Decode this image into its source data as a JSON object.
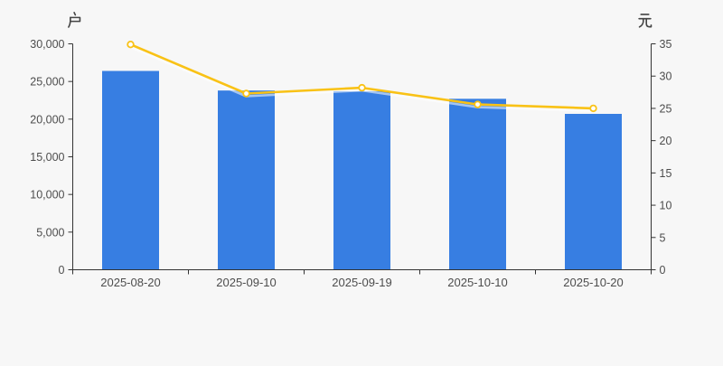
{
  "colors": {
    "background": "#f7f7f7",
    "bar": "#377ee2",
    "line": "#f9c216",
    "marker_fill": "#ffffff",
    "axis": "#333333",
    "tick_label": "#4d4d4d",
    "category_label": "#404040"
  },
  "left_axis": {
    "unit": "户",
    "min": 0,
    "max": 30000,
    "tick_values": [
      0,
      5000,
      10000,
      15000,
      20000,
      25000,
      30000
    ],
    "tick_labels": [
      "0",
      "5,000",
      "10,000",
      "15,000",
      "20,000",
      "25,000",
      "30,000"
    ]
  },
  "right_axis": {
    "unit": "元",
    "min": 0,
    "max": 35,
    "tick_values": [
      0,
      5,
      10,
      15,
      20,
      25,
      30,
      35
    ],
    "tick_labels": [
      "0",
      "5",
      "10",
      "15",
      "20",
      "25",
      "30",
      "35"
    ]
  },
  "chart_data": {
    "type": "bar",
    "categories": [
      "2025-08-20",
      "2025-09-10",
      "2025-09-19",
      "2025-10-10",
      "2025-10-20"
    ],
    "series": [
      {
        "name": "bar-series",
        "type": "bar",
        "y_axis": "left",
        "values": [
          26400,
          23800,
          23700,
          22700,
          20700
        ]
      },
      {
        "name": "line-series",
        "type": "line",
        "y_axis": "right",
        "marker": "circle",
        "values": [
          34.9,
          27.3,
          28.2,
          25.6,
          25.0
        ]
      }
    ],
    "left_ylim": [
      0,
      30000
    ],
    "right_ylim": [
      0,
      35
    ],
    "ylabel_left": "户",
    "ylabel_right": "元",
    "grid": false,
    "legend": "none"
  }
}
